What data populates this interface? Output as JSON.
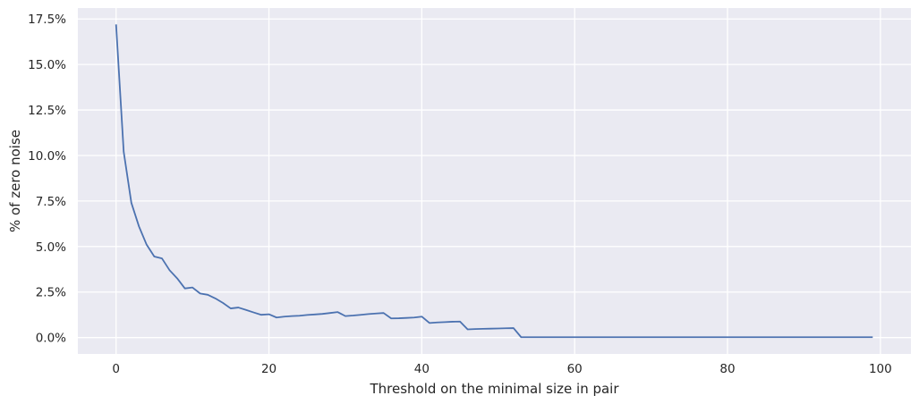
{
  "colors": {
    "plot_background": "#eaeaf2",
    "grid": "#ffffff",
    "line": "#4c72b0",
    "text": "#262626"
  },
  "chart_data": {
    "type": "line",
    "title": "",
    "xlabel": "Threshold on the minimal size in pair",
    "ylabel": "% of zero noise",
    "xlim": [
      -5,
      104
    ],
    "ylim": [
      -0.9,
      18.1
    ],
    "x_ticks": [
      0,
      20,
      40,
      60,
      80,
      100
    ],
    "y_ticks": [
      0,
      2.5,
      5,
      7.5,
      10,
      12.5,
      15,
      17.5
    ],
    "y_tick_labels": [
      "0.0%",
      "2.5%",
      "5.0%",
      "7.5%",
      "10.0%",
      "12.5%",
      "15.0%",
      "17.5%"
    ],
    "grid": true,
    "series": [
      {
        "name": "zero noise",
        "x": [
          0,
          1,
          2,
          3,
          4,
          5,
          6,
          7,
          8,
          9,
          10,
          11,
          12,
          13,
          14,
          15,
          16,
          17,
          18,
          19,
          20,
          21,
          22,
          23,
          24,
          25,
          26,
          27,
          28,
          29,
          30,
          31,
          32,
          33,
          34,
          35,
          36,
          37,
          38,
          39,
          40,
          41,
          42,
          43,
          44,
          45,
          46,
          47,
          48,
          49,
          50,
          51,
          52,
          53,
          54,
          55,
          56,
          57,
          58,
          59,
          60,
          61,
          62,
          63,
          64,
          65,
          66,
          67,
          68,
          69,
          70,
          71,
          72,
          73,
          74,
          75,
          76,
          77,
          78,
          79,
          80,
          81,
          82,
          83,
          84,
          85,
          86,
          87,
          88,
          89,
          90,
          91,
          92,
          93,
          94,
          95,
          96,
          97,
          98,
          99
        ],
        "y": [
          17.2,
          10.2,
          7.4,
          6.1,
          5.1,
          4.45,
          4.35,
          3.7,
          3.25,
          2.7,
          2.75,
          2.42,
          2.35,
          2.15,
          1.9,
          1.6,
          1.65,
          1.52,
          1.38,
          1.25,
          1.28,
          1.1,
          1.15,
          1.18,
          1.2,
          1.24,
          1.27,
          1.3,
          1.35,
          1.4,
          1.18,
          1.21,
          1.25,
          1.29,
          1.32,
          1.35,
          1.05,
          1.06,
          1.08,
          1.1,
          1.15,
          0.8,
          0.83,
          0.85,
          0.87,
          0.88,
          0.45,
          0.47,
          0.48,
          0.49,
          0.5,
          0.51,
          0.52,
          0.02,
          0.02,
          0.02,
          0.02,
          0.02,
          0.02,
          0.02,
          0.02,
          0.02,
          0.02,
          0.02,
          0.02,
          0.02,
          0.02,
          0.02,
          0.02,
          0.02,
          0.02,
          0.02,
          0.02,
          0.02,
          0.02,
          0.02,
          0.02,
          0.02,
          0.02,
          0.02,
          0.02,
          0.02,
          0.02,
          0.02,
          0.02,
          0.02,
          0.02,
          0.02,
          0.02,
          0.02,
          0.02,
          0.02,
          0.02,
          0.02,
          0.02,
          0.02,
          0.02,
          0.02,
          0.02,
          0.02
        ]
      }
    ]
  }
}
